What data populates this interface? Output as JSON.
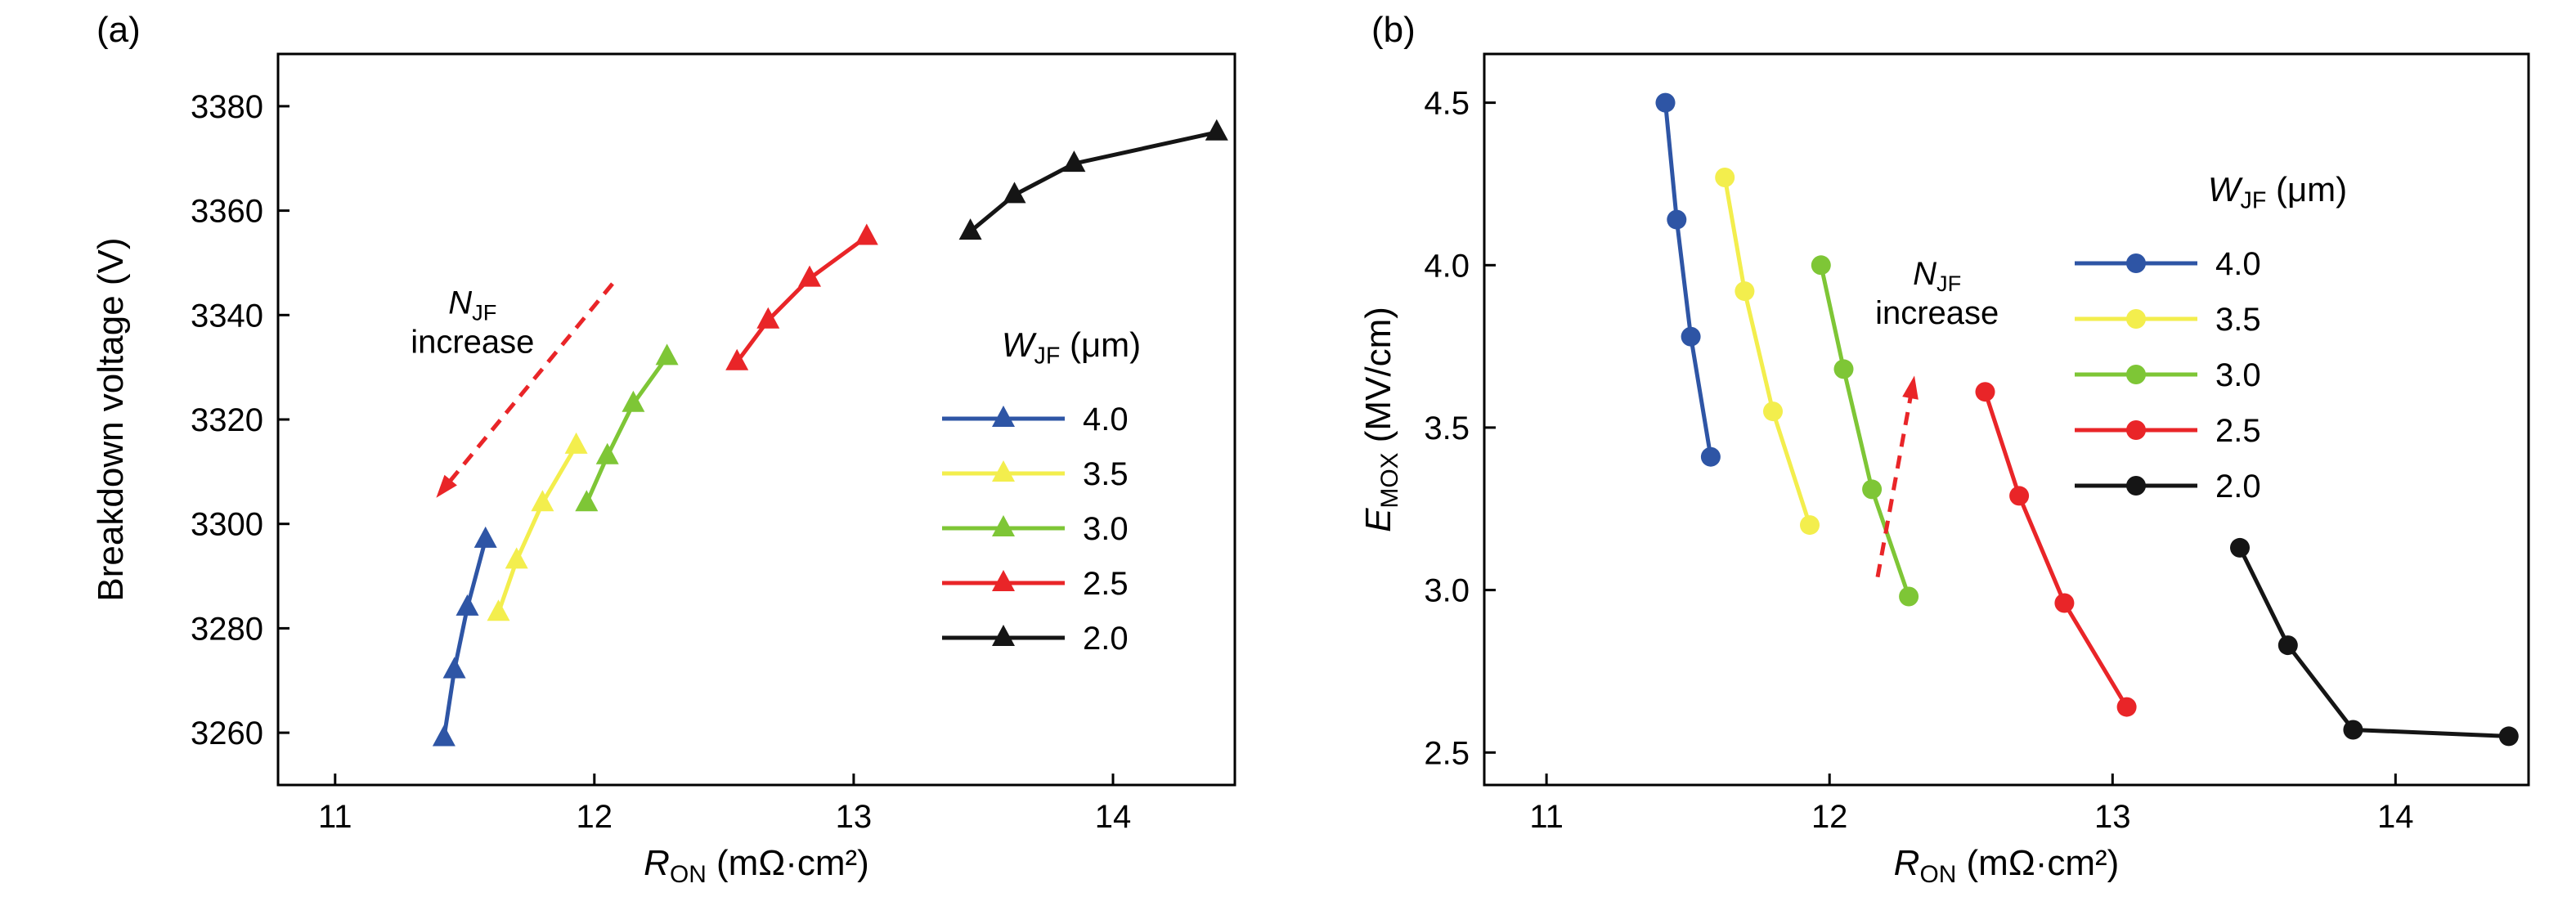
{
  "figure": {
    "background": "#ffffff",
    "text_color": "#000000"
  },
  "chart_data": [
    {
      "type": "line",
      "panel_label": "(a)",
      "marker": "triangle",
      "xlabel": "*R*_{ON} (mΩ·cm²)",
      "ylabel": "Breakdown voltage (V)",
      "xlim": [
        10.78,
        14.47
      ],
      "ylim": [
        3250,
        3390
      ],
      "xticks": [
        11,
        12,
        13,
        14
      ],
      "xtick_labels": [
        "11",
        "12",
        "13",
        "14"
      ],
      "yticks": [
        3260,
        3280,
        3300,
        3320,
        3340,
        3360,
        3380
      ],
      "ytick_labels": [
        "3260",
        "3280",
        "3300",
        "3320",
        "3340",
        "3360",
        "3380"
      ],
      "grid": false,
      "legend": {
        "title": "*W*_{JF} (μm)",
        "position": "center-right",
        "entries": [
          "4.0",
          "3.5",
          "3.0",
          "2.5",
          "2.0"
        ]
      },
      "annotation": {
        "lines": [
          "*N*_{JF}",
          "increase"
        ],
        "x": 11.53,
        "y": 3339,
        "arrow": {
          "x1": 12.07,
          "y1": 3346,
          "x2": 11.39,
          "y2": 3305
        },
        "arrow_color": "#e92528"
      },
      "series": [
        {
          "name": "4.0",
          "color": "#2e55a5",
          "x": [
            11.42,
            11.46,
            11.51,
            11.58
          ],
          "y": [
            3259,
            3272,
            3284,
            3297
          ]
        },
        {
          "name": "3.5",
          "color": "#f3ee4d",
          "x": [
            11.63,
            11.7,
            11.8,
            11.93
          ],
          "y": [
            3283,
            3293,
            3304,
            3315
          ]
        },
        {
          "name": "3.0",
          "color": "#7ec636",
          "x": [
            11.97,
            12.05,
            12.15,
            12.28
          ],
          "y": [
            3304,
            3313,
            3323,
            3332
          ]
        },
        {
          "name": "2.5",
          "color": "#e92528",
          "x": [
            12.55,
            12.67,
            12.83,
            13.05
          ],
          "y": [
            3331,
            3339,
            3347,
            3355
          ]
        },
        {
          "name": "2.0",
          "color": "#151515",
          "x": [
            13.45,
            13.62,
            13.85,
            14.4
          ],
          "y": [
            3356,
            3363,
            3369,
            3375
          ]
        }
      ]
    },
    {
      "type": "line",
      "panel_label": "(b)",
      "marker": "circle",
      "xlabel": "*R*_{ON} (mΩ·cm²)",
      "ylabel": "*E*_{MOX} (MV/cm)",
      "xlim": [
        10.78,
        14.47
      ],
      "ylim": [
        2.4,
        4.65
      ],
      "xticks": [
        11,
        12,
        13,
        14
      ],
      "xtick_labels": [
        "11",
        "12",
        "13",
        "14"
      ],
      "yticks": [
        2.5,
        3.0,
        3.5,
        4.0,
        4.5
      ],
      "ytick_labels": [
        "2.5",
        "3.0",
        "3.5",
        "4.0",
        "4.5"
      ],
      "grid": false,
      "legend": {
        "title": "*W*_{JF} (μm)",
        "position": "top-right",
        "entries": [
          "4.0",
          "3.5",
          "3.0",
          "2.5",
          "2.0"
        ]
      },
      "annotation": {
        "lines": [
          "*N*_{JF}",
          "increase"
        ],
        "x": 12.38,
        "y": 3.92,
        "arrow": {
          "x1": 12.17,
          "y1": 3.04,
          "x2": 12.3,
          "y2": 3.66
        },
        "arrow_color": "#e92528"
      },
      "series": [
        {
          "name": "4.0",
          "color": "#2e55a5",
          "x": [
            11.42,
            11.46,
            11.51,
            11.58
          ],
          "y": [
            4.5,
            4.14,
            3.78,
            3.41
          ]
        },
        {
          "name": "3.5",
          "color": "#f3ee4d",
          "x": [
            11.63,
            11.7,
            11.8,
            11.93
          ],
          "y": [
            4.27,
            3.92,
            3.55,
            3.2
          ]
        },
        {
          "name": "3.0",
          "color": "#7ec636",
          "x": [
            11.97,
            12.05,
            12.15,
            12.28
          ],
          "y": [
            4.0,
            3.68,
            3.31,
            2.98
          ]
        },
        {
          "name": "2.5",
          "color": "#e92528",
          "x": [
            12.55,
            12.67,
            12.83,
            13.05
          ],
          "y": [
            3.61,
            3.29,
            2.96,
            2.64
          ]
        },
        {
          "name": "2.0",
          "color": "#151515",
          "x": [
            13.45,
            13.62,
            13.85,
            14.4
          ],
          "y": [
            3.13,
            2.83,
            2.57,
            2.55
          ]
        }
      ]
    }
  ]
}
